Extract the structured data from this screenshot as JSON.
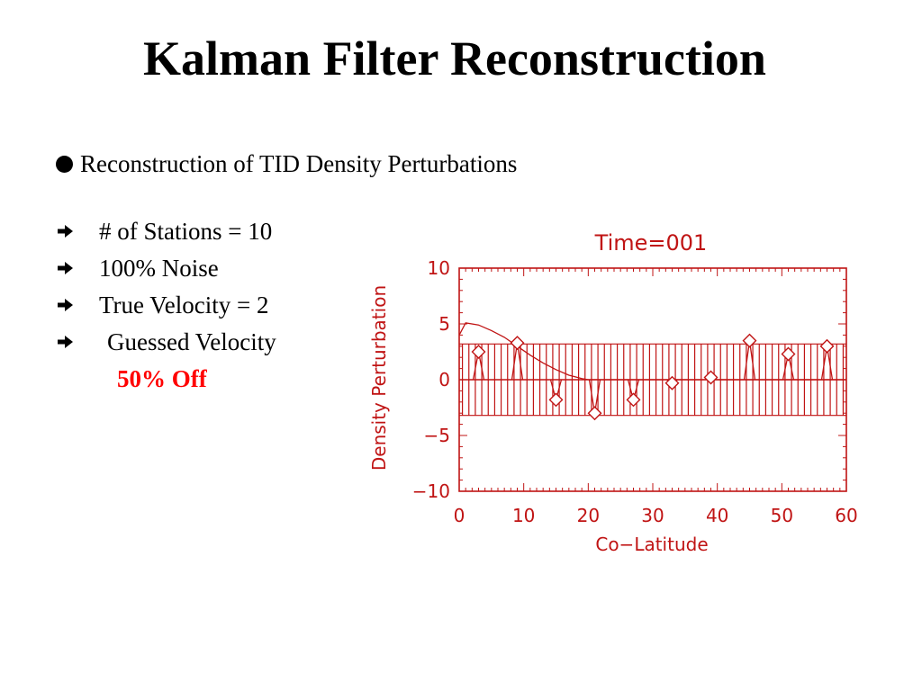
{
  "slide": {
    "title": "Kalman Filter Reconstruction",
    "main_bullet": "Reconstruction of TID Density Perturbations",
    "sub_bullets": [
      "# of Stations = 10",
      "100% Noise",
      "True Velocity = 2",
      "Guessed Velocity"
    ],
    "highlight": "50% Off"
  },
  "colors": {
    "plot": "#c01414",
    "highlight": "#ff0000"
  },
  "chart_data": {
    "type": "line",
    "title": "Time=001",
    "xlabel": "Co−Latitude",
    "ylabel": "Density  Perturbation",
    "xlim": [
      0,
      60
    ],
    "ylim": [
      -10,
      10
    ],
    "xticks": [
      "0",
      "10",
      "20",
      "30",
      "40",
      "50",
      "60"
    ],
    "yticks": [
      "10",
      "5",
      "0",
      "−5",
      "−10"
    ],
    "series": [
      {
        "kind": "curve",
        "x": [
          0,
          1,
          3,
          5,
          7,
          9,
          11,
          13,
          15,
          17,
          19,
          20,
          22,
          60
        ],
        "y": [
          4.0,
          5.1,
          4.9,
          4.4,
          3.8,
          3.0,
          2.2,
          1.5,
          0.9,
          0.4,
          0.1,
          0.0,
          0.0,
          0.0
        ]
      },
      {
        "kind": "stations",
        "marker": "diamond",
        "x": [
          3,
          9,
          15,
          21,
          27,
          33,
          39,
          45,
          51,
          57
        ],
        "y": [
          2.5,
          3.3,
          -1.8,
          -3.0,
          -1.8,
          -0.3,
          0.2,
          3.5,
          2.3,
          3.0
        ]
      },
      {
        "kind": "error-bars",
        "spacing": 1,
        "xrange": [
          0.5,
          59.5
        ],
        "range": [
          -3.2,
          3.2
        ]
      }
    ]
  }
}
